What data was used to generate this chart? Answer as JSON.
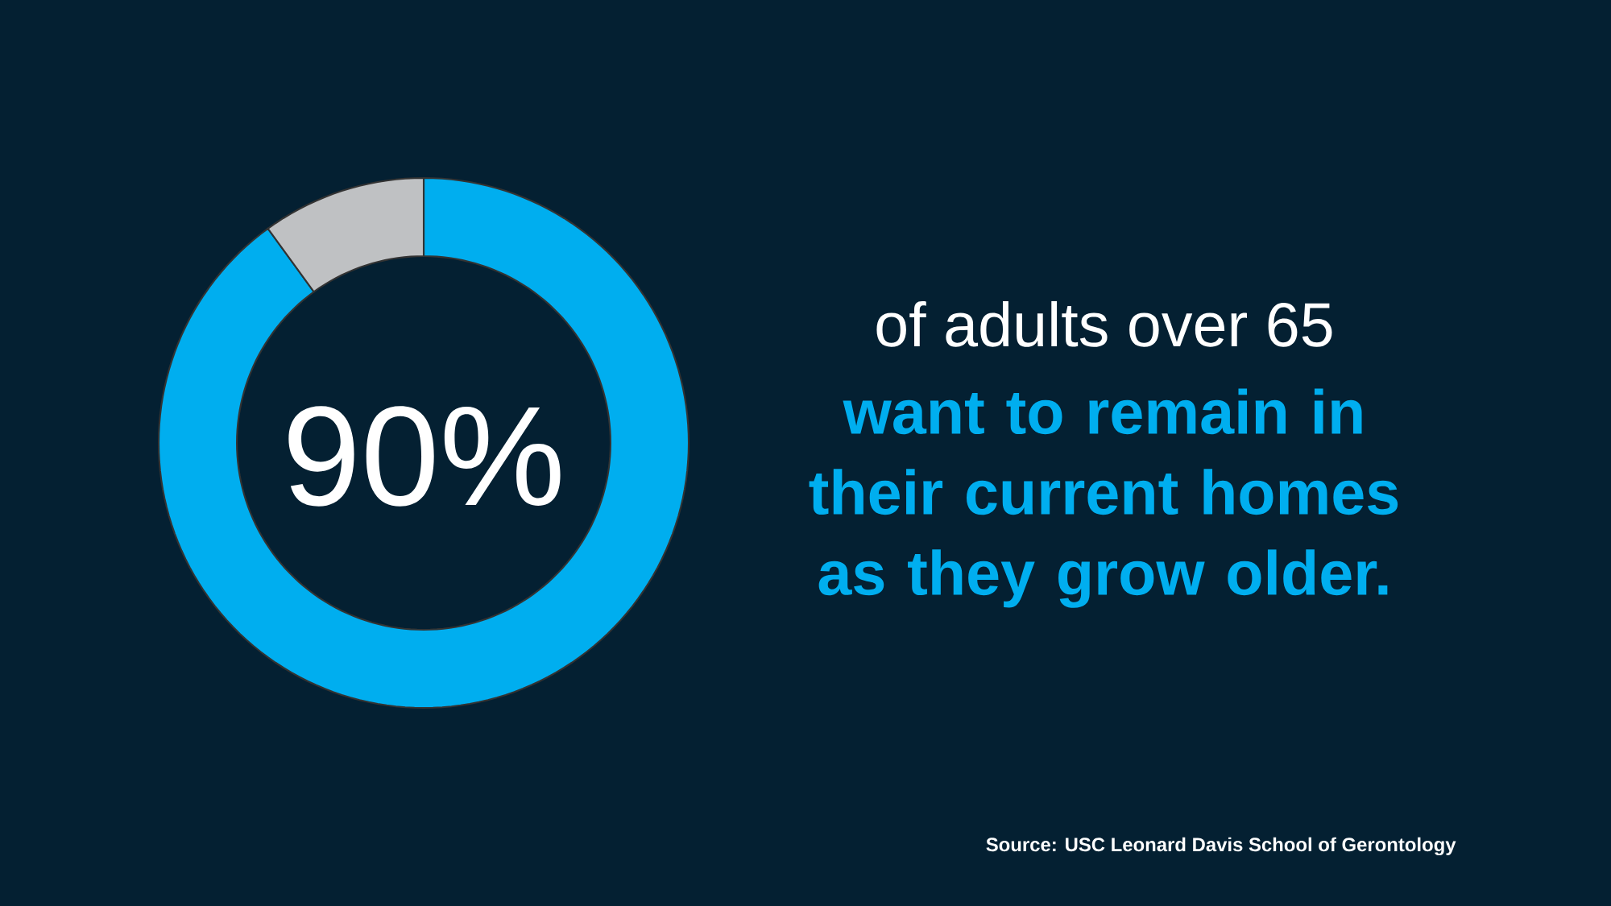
{
  "chart_data": {
    "type": "donut",
    "categories": [
      null,
      null
    ],
    "values": [
      90,
      10
    ],
    "colors": [
      "#00aeef",
      "#bfc1c3"
    ],
    "value_labels": [
      "90%",
      null
    ],
    "annotations": [
      "of adults over 65",
      "want to remain in their current homes as they grow older.",
      "Source: USC Leonard Davis School of Gerontology"
    ]
  }
}
